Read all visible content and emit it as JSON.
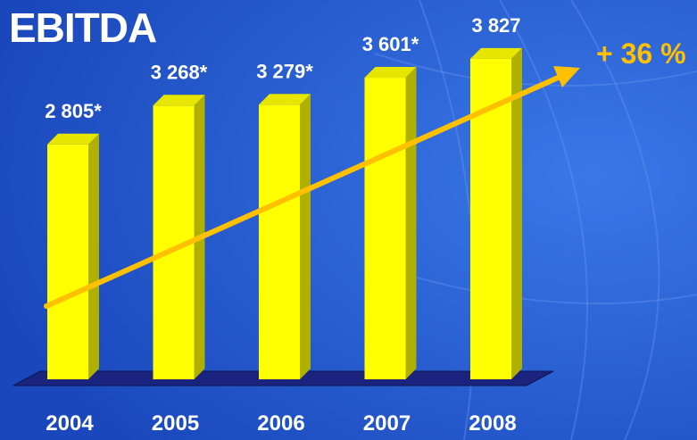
{
  "chart_data": {
    "type": "bar",
    "title": "EBITDA",
    "categories": [
      "2004",
      "2005",
      "2006",
      "2007",
      "2008"
    ],
    "values": [
      2805,
      3268,
      3279,
      3601,
      3827
    ],
    "data_labels": [
      "2 805*",
      "3 268*",
      "3 279*",
      "3 601*",
      "3 827"
    ],
    "ylim": [
      0,
      3900
    ],
    "annotation": "+ 36 %",
    "trend": "increasing arrow from 2004 to 2008",
    "grid": false,
    "legend": "none",
    "colors": {
      "background": "#1c4fc4",
      "bar_front": "#ffff00",
      "bar_side": "#b0b000",
      "bar_top": "#e6e600",
      "floor": "#1a237e",
      "arrow": "#ffc000",
      "text": "#ffffff"
    }
  }
}
